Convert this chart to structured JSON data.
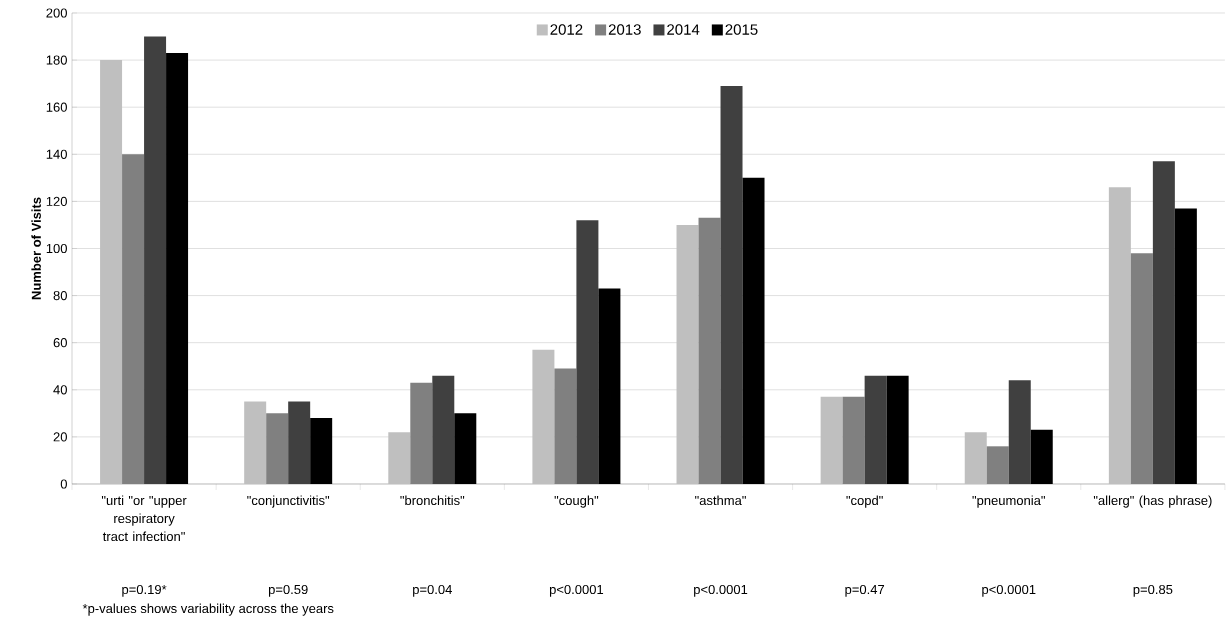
{
  "chart_data": {
    "type": "bar",
    "ylabel": "Number of Visits",
    "categories": [
      "\"urti \"or \"upper respiratory tract infection\"",
      "\"conjunctivitis\"",
      "\"bronchitis\"",
      "\"cough\"",
      "\"asthma\"",
      "\"copd\"",
      "\"pneumonia\"",
      "\"allerg\" (has phrase)"
    ],
    "series": [
      {
        "name": "2012",
        "color": "#bfbfbf",
        "values": [
          180,
          35,
          22,
          57,
          110,
          37,
          22,
          126
        ]
      },
      {
        "name": "2013",
        "color": "#808080",
        "values": [
          140,
          30,
          43,
          49,
          113,
          37,
          16,
          98
        ]
      },
      {
        "name": "2014",
        "color": "#404040",
        "values": [
          190,
          35,
          46,
          112,
          169,
          46,
          44,
          137
        ]
      },
      {
        "name": "2015",
        "color": "#000000",
        "values": [
          183,
          28,
          30,
          83,
          130,
          46,
          23,
          117
        ]
      }
    ],
    "ylim": [
      0,
      200
    ],
    "yticks": [
      0,
      20,
      40,
      60,
      80,
      100,
      120,
      140,
      160,
      180,
      200
    ],
    "grid": "y",
    "legend": "top",
    "annotations": [
      "p=0.19*",
      "p=0.59",
      "p=0.04",
      "p<0.0001",
      "p<0.0001",
      "p=0.47",
      "p<0.0001",
      "p=0.85",
      "*p-values shows variability across the years"
    ]
  }
}
